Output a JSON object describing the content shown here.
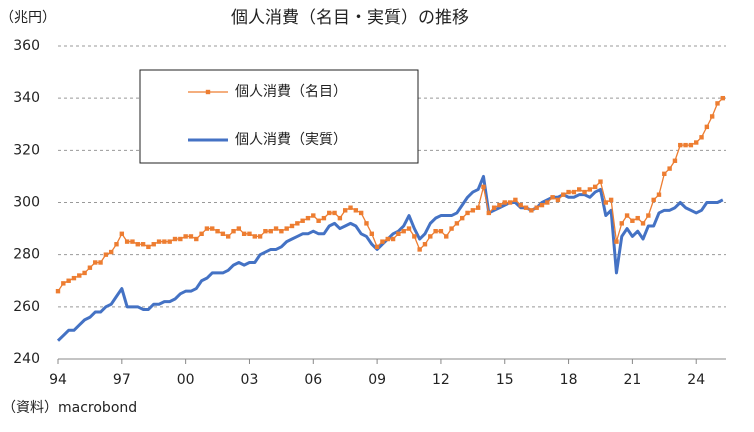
{
  "chart_data": {
    "type": "line",
    "title": "個人消費（名目・実質）の推移",
    "y_unit": "（兆円）",
    "source": "（資料）macrobond",
    "x": [
      1994,
      1994.25,
      1994.5,
      1994.75,
      1995,
      1995.25,
      1995.5,
      1995.75,
      1996,
      1996.25,
      1996.5,
      1996.75,
      1997,
      1997.25,
      1997.5,
      1997.75,
      1998,
      1998.25,
      1998.5,
      1998.75,
      1999,
      1999.25,
      1999.5,
      1999.75,
      2000,
      2000.25,
      2000.5,
      2000.75,
      2001,
      2001.25,
      2001.5,
      2001.75,
      2002,
      2002.25,
      2002.5,
      2002.75,
      2003,
      2003.25,
      2003.5,
      2003.75,
      2004,
      2004.25,
      2004.5,
      2004.75,
      2005,
      2005.25,
      2005.5,
      2005.75,
      2006,
      2006.25,
      2006.5,
      2006.75,
      2007,
      2007.25,
      2007.5,
      2007.75,
      2008,
      2008.25,
      2008.5,
      2008.75,
      2009,
      2009.25,
      2009.5,
      2009.75,
      2010,
      2010.25,
      2010.5,
      2010.75,
      2011,
      2011.25,
      2011.5,
      2011.75,
      2012,
      2012.25,
      2012.5,
      2012.75,
      2013,
      2013.25,
      2013.5,
      2013.75,
      2014,
      2014.25,
      2014.5,
      2014.75,
      2015,
      2015.25,
      2015.5,
      2015.75,
      2016,
      2016.25,
      2016.5,
      2016.75,
      2017,
      2017.25,
      2017.5,
      2017.75,
      2018,
      2018.25,
      2018.5,
      2018.75,
      2019,
      2019.25,
      2019.5,
      2019.75,
      2020,
      2020.25,
      2020.5,
      2020.75,
      2021,
      2021.25,
      2021.5,
      2021.75,
      2022,
      2022.25,
      2022.5,
      2022.75,
      2023,
      2023.25,
      2023.5,
      2023.75,
      2024,
      2024.25,
      2024.5,
      2024.75,
      2025,
      2025.25
    ],
    "series": [
      {
        "name": "個人消費（名目）",
        "color": "#ed7d31",
        "marker": "square",
        "values": [
          266,
          269,
          270,
          271,
          272,
          273,
          275,
          277,
          277,
          280,
          281,
          284,
          288,
          285,
          285,
          284,
          284,
          283,
          284,
          285,
          285,
          285,
          286,
          286,
          287,
          287,
          286,
          288,
          290,
          290,
          289,
          288,
          287,
          289,
          290,
          288,
          288,
          287,
          287,
          289,
          289,
          290,
          289,
          290,
          291,
          292,
          293,
          294,
          295,
          293,
          294,
          296,
          296,
          294,
          297,
          298,
          297,
          296,
          292,
          288,
          283,
          285,
          286,
          286,
          288,
          289,
          290,
          287,
          282,
          284,
          287,
          289,
          289,
          287,
          290,
          292,
          294,
          296,
          297,
          298,
          306,
          296,
          298,
          299,
          300,
          300,
          301,
          299,
          298,
          297,
          298,
          299,
          300,
          302,
          301,
          303,
          304,
          304,
          305,
          304,
          305,
          306,
          308,
          300,
          301,
          285,
          292,
          295,
          293,
          294,
          292,
          295,
          301,
          303,
          311,
          313,
          316,
          322,
          322,
          322,
          323,
          325,
          329,
          333,
          338,
          340
        ]
      },
      {
        "name": "個人消費（実質）",
        "color": "#4472c4",
        "marker": "none",
        "values": [
          247,
          249,
          251,
          251,
          253,
          255,
          256,
          258,
          258,
          260,
          261,
          264,
          267,
          260,
          260,
          260,
          259,
          259,
          261,
          261,
          262,
          262,
          263,
          265,
          266,
          266,
          267,
          270,
          271,
          273,
          273,
          273,
          274,
          276,
          277,
          276,
          277,
          277,
          280,
          281,
          282,
          282,
          283,
          285,
          286,
          287,
          288,
          288,
          289,
          288,
          288,
          291,
          292,
          290,
          291,
          292,
          291,
          288,
          287,
          284,
          282,
          284,
          286,
          288,
          289,
          291,
          295,
          290,
          286,
          288,
          292,
          294,
          295,
          295,
          295,
          296,
          299,
          302,
          304,
          305,
          310,
          296,
          297,
          298,
          299,
          300,
          300,
          298,
          298,
          297,
          298,
          300,
          301,
          302,
          302,
          303,
          302,
          302,
          303,
          303,
          302,
          304,
          305,
          295,
          297,
          273,
          287,
          290,
          287,
          289,
          286,
          291,
          291,
          296,
          297,
          297,
          298,
          300,
          298,
          297,
          296,
          297,
          300,
          300,
          300,
          301
        ]
      }
    ],
    "xlim": [
      1994,
      2025.4
    ],
    "xticks": [
      {
        "value": 1994,
        "label": "94"
      },
      {
        "value": 1997,
        "label": "97"
      },
      {
        "value": 2000,
        "label": "00"
      },
      {
        "value": 2003,
        "label": "03"
      },
      {
        "value": 2006,
        "label": "06"
      },
      {
        "value": 2009,
        "label": "09"
      },
      {
        "value": 2012,
        "label": "12"
      },
      {
        "value": 2015,
        "label": "15"
      },
      {
        "value": 2018,
        "label": "18"
      },
      {
        "value": 2021,
        "label": "21"
      },
      {
        "value": 2024,
        "label": "24"
      }
    ],
    "ylim": [
      240,
      360
    ],
    "yticks": [
      240,
      260,
      280,
      300,
      320,
      340,
      360
    ],
    "grid": true,
    "legend": "top-left"
  }
}
